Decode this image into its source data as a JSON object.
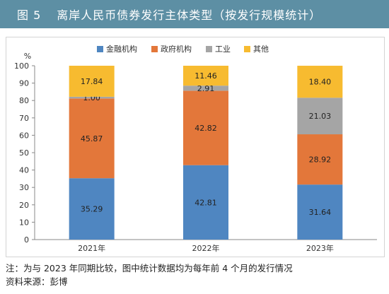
{
  "header": {
    "figure_label": "图 5",
    "title": "离岸人民币债券发行主体类型（按发行规模统计）",
    "bg_color": "#5d8fa4"
  },
  "chart_data": {
    "type": "stacked-bar",
    "title": "",
    "unit_label": "%",
    "categories": [
      "2021年",
      "2022年",
      "2023年"
    ],
    "series": [
      {
        "name": "金融机构",
        "color": "#4f86c1",
        "values": [
          35.29,
          42.81,
          31.64
        ]
      },
      {
        "name": "政府机构",
        "color": "#e3773a",
        "values": [
          45.87,
          42.82,
          28.92
        ]
      },
      {
        "name": "工业",
        "color": "#a5a5a5",
        "values": [
          1.0,
          2.91,
          21.03
        ]
      },
      {
        "name": "其他",
        "color": "#f7bb30",
        "values": [
          17.84,
          11.46,
          18.4
        ]
      }
    ],
    "value_labels": [
      [
        "35.29",
        "45.87",
        "1.00",
        "17.84"
      ],
      [
        "42.81",
        "42.82",
        "2.91",
        "11.46"
      ],
      [
        "31.64",
        "28.92",
        "21.03",
        "18.40"
      ]
    ],
    "ylim": [
      0,
      100
    ],
    "yticks": [
      "0",
      "10",
      "20",
      "30",
      "40",
      "50",
      "60",
      "70",
      "80",
      "90",
      "100"
    ],
    "ytick_values": [
      0,
      10,
      20,
      30,
      40,
      50,
      60,
      70,
      80,
      90,
      100
    ],
    "legend_position": "top-right",
    "grid": false
  },
  "notes": {
    "line1": "注：为与 2023 年同期比较，图中统计数据均为每年前 4 个月的发行情况",
    "line2": "资料来源：彭博"
  }
}
